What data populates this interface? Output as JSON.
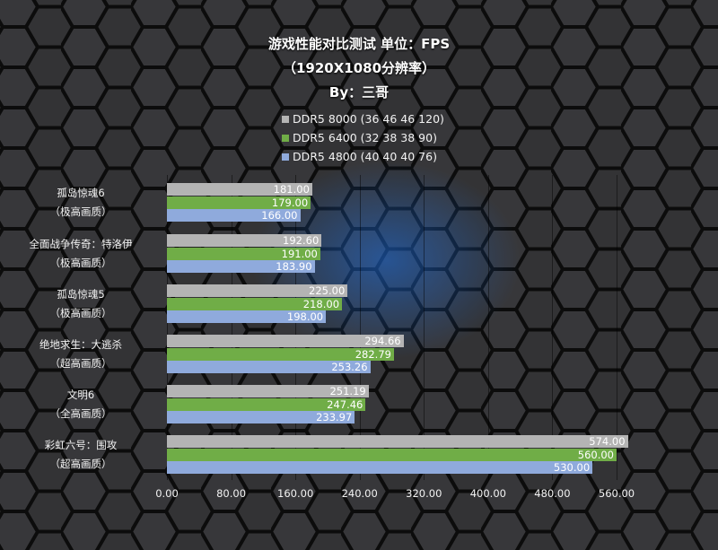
{
  "title": {
    "line1": "游戏性能对比测试 单位：FPS",
    "line2": "（1920X1080分辨率）",
    "line3": "By：三哥"
  },
  "legend": [
    {
      "label": "DDR5 8000  (36 46 46 120)",
      "color": "#b4b4b4"
    },
    {
      "label": "DDR5 6400  (32 38 38 90)",
      "color": "#70ad47"
    },
    {
      "label": "DDR5 4800  (40 40 40 76)",
      "color": "#8faadc"
    }
  ],
  "chart_data": {
    "type": "bar",
    "orientation": "horizontal",
    "title": "游戏性能对比测试 单位：FPS (1920X1080分辨率) By：三哥",
    "xlabel": "",
    "ylabel": "",
    "xlim": [
      0,
      560
    ],
    "xticks": [
      "0.00",
      "80.00",
      "160.00",
      "240.00",
      "320.00",
      "400.00",
      "480.00",
      "560.00"
    ],
    "grid": true,
    "legend_position": "top",
    "categories": [
      {
        "name": "孤岛惊魂6",
        "quality": "（极高画质）"
      },
      {
        "name": "全面战争传奇：特洛伊",
        "quality": "（极高画质）"
      },
      {
        "name": "孤岛惊魂5",
        "quality": "（极高画质）"
      },
      {
        "name": "绝地求生：大逃杀",
        "quality": "（超高画质）"
      },
      {
        "name": "文明6",
        "quality": "（全高画质）"
      },
      {
        "name": "彩虹六号：围攻",
        "quality": "（超高画质）"
      }
    ],
    "series": [
      {
        "name": "DDR5 8000  (36 46 46 120)",
        "color": "#b4b4b4",
        "values": [
          181.0,
          192.6,
          225.0,
          294.66,
          251.19,
          574.0
        ],
        "labels": [
          "181.00",
          "192.60",
          "225.00",
          "294.66",
          "251.19",
          "574.00"
        ]
      },
      {
        "name": "DDR5 6400  (32 38 38 90)",
        "color": "#70ad47",
        "values": [
          179.0,
          191.0,
          218.0,
          282.79,
          247.46,
          560.0
        ],
        "labels": [
          "179.00",
          "191.00",
          "218.00",
          "282.79",
          "247.46",
          "560.00"
        ]
      },
      {
        "name": "DDR5 4800  (40 40 40 76)",
        "color": "#8faadc",
        "values": [
          166.0,
          183.9,
          198.0,
          253.26,
          233.97,
          530.0
        ],
        "labels": [
          "166.00",
          "183.90",
          "198.00",
          "253.26",
          "233.97",
          "530.00"
        ]
      }
    ]
  }
}
